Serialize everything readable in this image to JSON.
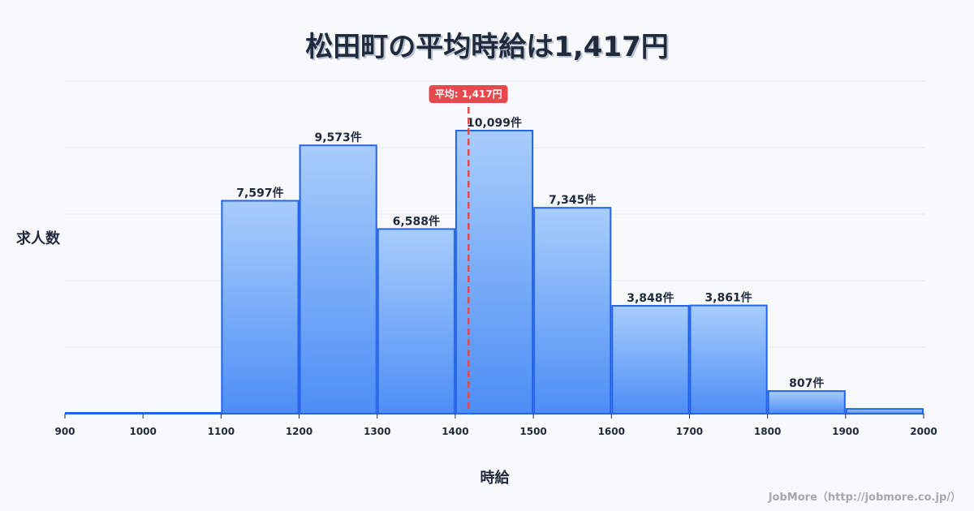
{
  "title": "松田町の平均時給は1,417円",
  "credit": "JobMore（http://jobmore.co.jp/）",
  "mean_badge": "平均: 1,417円",
  "colors": {
    "bar_top": "#a8cdfb",
    "bar_bottom": "#4d8ef5",
    "bar_stroke": "#2563eb",
    "mean_line": "#e5484d",
    "grid": "#e3e6ee",
    "background": "#f8f9fb"
  },
  "chart_data": {
    "type": "bar",
    "subtype": "histogram",
    "title": "松田町の平均時給は1,417円",
    "xlabel": "時給",
    "ylabel": "求人数",
    "bin_edges": [
      900,
      1000,
      1100,
      1200,
      1300,
      1400,
      1500,
      1600,
      1700,
      1800,
      1900,
      2000
    ],
    "categories": [
      "900-1000",
      "1000-1100",
      "1100-1200",
      "1200-1300",
      "1300-1400",
      "1400-1500",
      "1500-1600",
      "1600-1700",
      "1700-1800",
      "1800-1900",
      "1900-2000"
    ],
    "values": [
      0,
      0,
      7597,
      9573,
      6588,
      10099,
      7345,
      3848,
      3861,
      807,
      170
    ],
    "labels": [
      "",
      "",
      "7,597件",
      "9,573件",
      "6,588件",
      "10,099件",
      "7,345件",
      "3,848件",
      "3,861件",
      "807件",
      ""
    ],
    "x_ticks": [
      "900",
      "1000",
      "1100",
      "1200",
      "1300",
      "1400",
      "1500",
      "1600",
      "1700",
      "1800",
      "1900",
      "2000"
    ],
    "mean": 1417,
    "mean_label": "平均: 1,417円",
    "ylim": [
      0,
      11865
    ],
    "grid": true,
    "y_tick_labels_shown": false,
    "legend": "none"
  }
}
